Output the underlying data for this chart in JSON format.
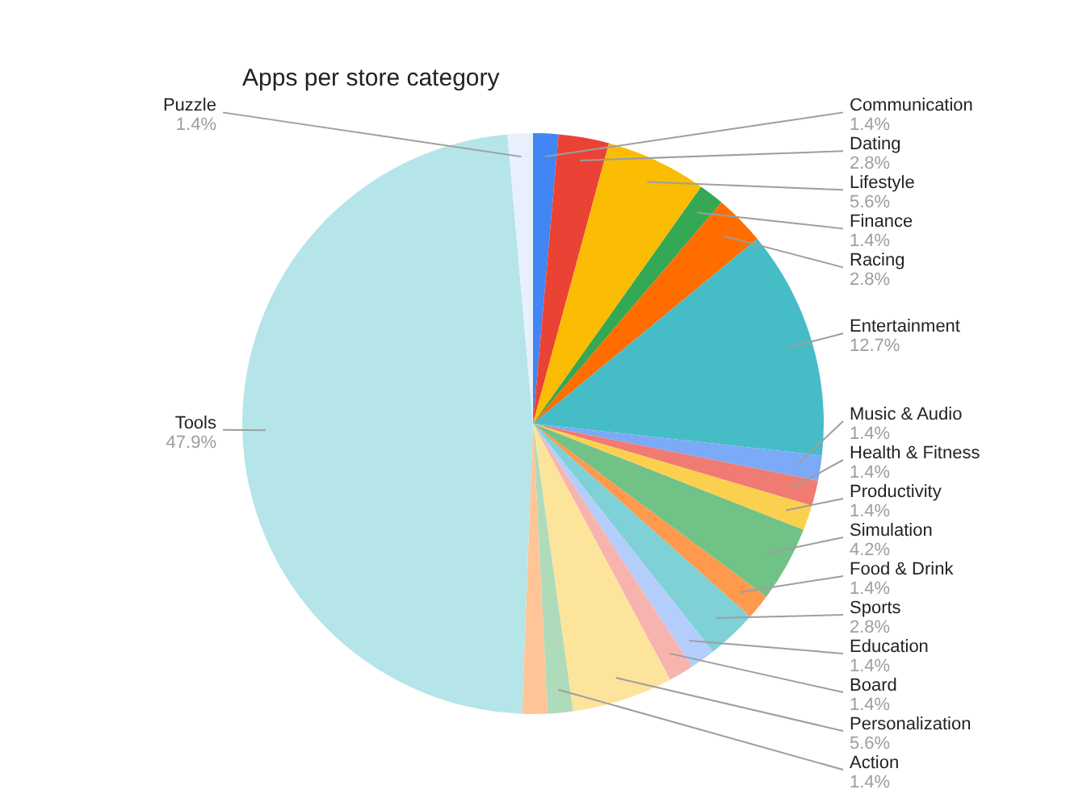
{
  "chart_data": {
    "type": "pie",
    "title": "Apps per store category",
    "categories": [
      "Communication",
      "Dating",
      "Lifestyle",
      "Finance",
      "Racing",
      "Entertainment",
      "Music & Audio",
      "Health & Fitness",
      "Productivity",
      "Simulation",
      "Food & Drink",
      "Sports",
      "Education",
      "Board",
      "Personalization",
      "Action",
      null,
      "Tools",
      "Puzzle"
    ],
    "values": [
      1.4,
      2.8,
      5.6,
      1.4,
      2.8,
      12.7,
      1.4,
      1.4,
      1.4,
      4.2,
      1.4,
      2.8,
      1.4,
      1.4,
      5.6,
      1.4,
      1.4,
      47.9,
      1.4
    ],
    "value_labels": [
      "1.4%",
      "2.8%",
      "5.6%",
      "1.4%",
      "2.8%",
      "12.7%",
      "1.4%",
      "1.4%",
      "1.4%",
      "4.2%",
      "1.4%",
      "2.8%",
      "1.4%",
      "1.4%",
      "5.6%",
      "1.4%",
      null,
      "47.9%",
      "1.4%"
    ],
    "colors": [
      "#4285f4",
      "#ea4335",
      "#fbbc04",
      "#34a853",
      "#ff6d01",
      "#46bdc6",
      "#7baaf7",
      "#f07b72",
      "#fcd04f",
      "#71c287",
      "#ff994d",
      "#7ed1d7",
      "#b3cefb",
      "#f7b4ae",
      "#fde49b",
      "#aedcba",
      "#ffc599",
      "#b5e5e8",
      "#e8f0fe"
    ],
    "legend": false
  }
}
